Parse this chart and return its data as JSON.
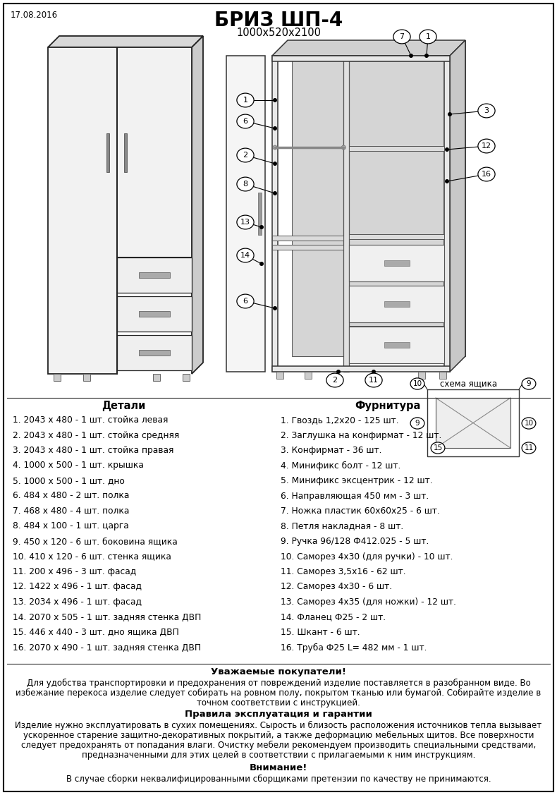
{
  "title": "БРИЗ ШП-4",
  "subtitle": "1000x520x2100",
  "date": "17.08.2016",
  "bg_color": "#ffffff",
  "border_color": "#000000",
  "details_header": "Детали",
  "hardware_header": "Фурнитура",
  "details": [
    "1. 2043 х 480 - 1 шт. стойка левая",
    "2. 2043 х 480 - 1 шт. стойка средняя",
    "3. 2043 х 480 - 1 шт. стойка правая",
    "4. 1000 х 500 - 1 шт. крышка",
    "5. 1000 х 500 - 1 шт. дно",
    "6. 484 х 480 - 2 шт. полка",
    "7. 468 х 480 - 4 шт. полка",
    "8. 484 х 100 - 1 шт. царга",
    "9. 450 х 120 - 6 шт. боковина ящика",
    "10. 410 х 120 - 6 шт. стенка ящика",
    "11. 200 х 496 - 3 шт. фасад",
    "12. 1422 х 496 - 1 шт. фасад",
    "13. 2034 х 496 - 1 шт. фасад",
    "14. 2070 х 505 - 1 шт. задняя стенка ДВП",
    "15. 446 х 440 - 3 шт. дно ящика ДВП",
    "16. 2070 х 490 - 1 шт. задняя стенка ДВП"
  ],
  "hardware": [
    "1. Гвоздь 1,2х20 - 125 шт.",
    "2. Заглушка на конфирмат - 12 шт.",
    "3. Конфирмат - 36 шт.",
    "4. Минификс болт - 12 шт.",
    "5. Минификс эксцентрик - 12 шт.",
    "6. Направляющая 450 мм - 3 шт.",
    "7. Ножка пластик 60х60х25 - 6 шт.",
    "8. Петля накладная - 8 шт.",
    "9. Ручка 96/128 Ф412.025 - 5 шт.",
    "10. Саморез 4х30 (для ручки) - 10 шт.",
    "11. Саморез 3,5х16 - 62 шт.",
    "12. Саморез 4х30 - 6 шт.",
    "13. Саморез 4х35 (для ножки) - 12 шт.",
    "14. Фланец Ф25 - 2 шт.",
    "15. Шкант - 6 шт.",
    "16. Труба Ф25 L= 482 мм - 1 шт."
  ],
  "notice_header": "Уважаемые покупатели!",
  "notice_line1": "Для удобства транспортировки и предохранения от повреждений изделие поставляется в разобранном виде. Во",
  "notice_line2": "избежание перекоса изделие следует собирать на ровном полу, покрытом тканью или бумагой. Собирайте изделие в",
  "notice_line3": "точном соответствии с инструкцией.",
  "rules_header": "Правила эксплуатация и гарантии",
  "rules_line1": "Изделие нужно эксплуатировать в сухих помещениях. Сырость и близость расположения источников тепла вызывает",
  "rules_line2": "ускоренное старение защитно-декоративных покрытий, а также деформацию мебельных щитов. Все поверхности",
  "rules_line3": "следует предохранять от попадания влаги. Очистку мебели рекомендуем производить специальными средствами,",
  "rules_line4": "предназначенными для этих целей в соответствии с прилагаемыми к ним инструкциям.",
  "warning_header": "Внимание!",
  "warning_text": "В случае сборки неквалифицированными сборщиками претензии по качеству не принимаются.",
  "schema_label": "схема ящика"
}
